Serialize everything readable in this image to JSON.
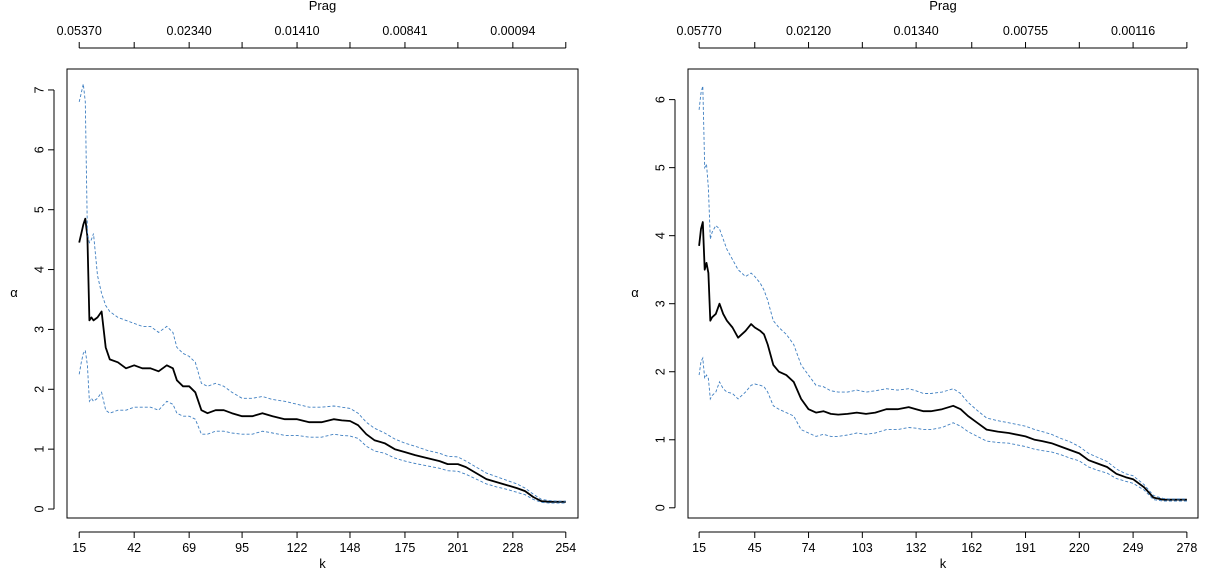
{
  "chart_data": [
    {
      "type": "line",
      "title": "",
      "top_axis": {
        "label": "Prag",
        "ticks": [
          15,
          69,
          122,
          175,
          228
        ],
        "tick_labels": [
          "0.05370",
          "0.02340",
          "0.01410",
          "0.00841",
          "0.00094"
        ]
      },
      "xlabel": "k",
      "ylabel": "α",
      "xlim": [
        9,
        260
      ],
      "ylim": [
        -0.15,
        7.35
      ],
      "x_ticks": [
        15,
        42,
        69,
        95,
        122,
        148,
        175,
        201,
        228,
        254
      ],
      "y_ticks": [
        0,
        1,
        2,
        3,
        4,
        5,
        6,
        7
      ],
      "series": [
        {
          "style": "estimate",
          "color": "#000000",
          "x": [
            15,
            16,
            17,
            18,
            19,
            20,
            21,
            22,
            24,
            26,
            28,
            30,
            34,
            38,
            42,
            46,
            50,
            54,
            58,
            61,
            63,
            66,
            69,
            72,
            75,
            78,
            82,
            86,
            90,
            95,
            100,
            105,
            110,
            116,
            122,
            128,
            134,
            140,
            144,
            148,
            152,
            156,
            160,
            165,
            170,
            175,
            180,
            186,
            192,
            196,
            201,
            205,
            210,
            215,
            220,
            225,
            230,
            234,
            238,
            242,
            246,
            250,
            254
          ],
          "y": [
            4.45,
            4.6,
            4.75,
            4.85,
            4.55,
            3.15,
            3.2,
            3.15,
            3.2,
            3.3,
            2.7,
            2.5,
            2.45,
            2.35,
            2.4,
            2.35,
            2.35,
            2.3,
            2.4,
            2.35,
            2.15,
            2.05,
            2.05,
            1.95,
            1.65,
            1.6,
            1.65,
            1.65,
            1.6,
            1.55,
            1.55,
            1.6,
            1.55,
            1.5,
            1.5,
            1.45,
            1.45,
            1.5,
            1.48,
            1.47,
            1.4,
            1.25,
            1.15,
            1.1,
            1.0,
            0.95,
            0.9,
            0.85,
            0.8,
            0.75,
            0.75,
            0.7,
            0.6,
            0.5,
            0.45,
            0.4,
            0.35,
            0.3,
            0.2,
            0.13,
            0.12,
            0.12,
            0.12
          ]
        },
        {
          "style": "upper-ci",
          "color": "#3f7fc1",
          "x": [
            15,
            16,
            17,
            18,
            19,
            20,
            21,
            22,
            24,
            26,
            28,
            30,
            34,
            38,
            42,
            46,
            50,
            54,
            58,
            61,
            63,
            66,
            69,
            72,
            75,
            78,
            82,
            86,
            90,
            95,
            100,
            105,
            110,
            116,
            122,
            128,
            134,
            140,
            144,
            148,
            152,
            156,
            160,
            165,
            170,
            175,
            180,
            186,
            192,
            196,
            201,
            205,
            210,
            215,
            220,
            225,
            230,
            234,
            238,
            242,
            246,
            250,
            254
          ],
          "y": [
            6.8,
            6.95,
            7.1,
            6.8,
            4.6,
            4.45,
            4.5,
            4.6,
            3.9,
            3.6,
            3.4,
            3.3,
            3.2,
            3.15,
            3.1,
            3.05,
            3.05,
            2.95,
            3.05,
            2.95,
            2.7,
            2.6,
            2.55,
            2.45,
            2.1,
            2.05,
            2.1,
            2.05,
            1.95,
            1.85,
            1.85,
            1.88,
            1.83,
            1.8,
            1.75,
            1.7,
            1.7,
            1.72,
            1.7,
            1.68,
            1.6,
            1.45,
            1.35,
            1.27,
            1.17,
            1.1,
            1.05,
            0.98,
            0.93,
            0.88,
            0.87,
            0.8,
            0.7,
            0.6,
            0.54,
            0.48,
            0.42,
            0.35,
            0.25,
            0.16,
            0.14,
            0.13,
            0.13
          ]
        },
        {
          "style": "lower-ci",
          "color": "#3f7fc1",
          "x": [
            15,
            16,
            17,
            18,
            19,
            20,
            21,
            22,
            24,
            26,
            28,
            30,
            34,
            38,
            42,
            46,
            50,
            54,
            58,
            61,
            63,
            66,
            69,
            72,
            75,
            78,
            82,
            86,
            90,
            95,
            100,
            105,
            110,
            116,
            122,
            128,
            134,
            140,
            144,
            148,
            152,
            156,
            160,
            165,
            170,
            175,
            180,
            186,
            192,
            196,
            201,
            205,
            210,
            215,
            220,
            225,
            230,
            234,
            238,
            242,
            246,
            250,
            254
          ],
          "y": [
            2.25,
            2.45,
            2.6,
            2.65,
            2.4,
            1.8,
            1.85,
            1.8,
            1.85,
            1.95,
            1.65,
            1.6,
            1.65,
            1.65,
            1.7,
            1.7,
            1.7,
            1.65,
            1.8,
            1.75,
            1.6,
            1.55,
            1.55,
            1.5,
            1.25,
            1.25,
            1.3,
            1.3,
            1.27,
            1.25,
            1.25,
            1.3,
            1.27,
            1.23,
            1.23,
            1.2,
            1.2,
            1.25,
            1.23,
            1.22,
            1.18,
            1.05,
            0.97,
            0.93,
            0.85,
            0.8,
            0.76,
            0.72,
            0.68,
            0.64,
            0.63,
            0.58,
            0.5,
            0.42,
            0.37,
            0.33,
            0.28,
            0.24,
            0.16,
            0.11,
            0.1,
            0.1,
            0.1
          ]
        }
      ]
    },
    {
      "type": "line",
      "title": "",
      "top_axis": {
        "label": "Prag",
        "ticks": [
          15,
          74,
          132,
          191,
          249
        ],
        "tick_labels": [
          "0.05770",
          "0.02120",
          "0.01340",
          "0.00755",
          "0.00116"
        ]
      },
      "xlabel": "k",
      "ylabel": "α",
      "xlim": [
        9,
        284
      ],
      "ylim": [
        -0.15,
        6.45
      ],
      "x_ticks": [
        15,
        45,
        74,
        103,
        132,
        162,
        191,
        220,
        249,
        278
      ],
      "y_ticks": [
        0,
        1,
        2,
        3,
        4,
        5,
        6
      ],
      "series": [
        {
          "style": "estimate",
          "color": "#000000",
          "x": [
            15,
            16,
            17,
            18,
            19,
            20,
            21,
            22,
            24,
            26,
            28,
            30,
            33,
            36,
            40,
            43,
            45,
            48,
            50,
            52,
            55,
            58,
            62,
            66,
            70,
            74,
            78,
            82,
            86,
            90,
            95,
            100,
            105,
            110,
            116,
            122,
            128,
            132,
            136,
            140,
            146,
            152,
            156,
            160,
            165,
            170,
            176,
            182,
            191,
            196,
            200,
            205,
            210,
            215,
            220,
            225,
            230,
            235,
            240,
            245,
            249,
            255,
            260,
            265,
            268,
            272,
            278
          ],
          "y": [
            3.85,
            4.1,
            4.2,
            3.5,
            3.6,
            3.45,
            2.75,
            2.8,
            2.85,
            3.0,
            2.85,
            2.75,
            2.65,
            2.5,
            2.6,
            2.7,
            2.65,
            2.6,
            2.55,
            2.4,
            2.1,
            2.0,
            1.95,
            1.85,
            1.6,
            1.45,
            1.4,
            1.42,
            1.38,
            1.37,
            1.38,
            1.4,
            1.38,
            1.4,
            1.45,
            1.45,
            1.48,
            1.45,
            1.42,
            1.42,
            1.45,
            1.5,
            1.45,
            1.35,
            1.25,
            1.15,
            1.12,
            1.1,
            1.05,
            1.0,
            0.98,
            0.95,
            0.9,
            0.85,
            0.8,
            0.7,
            0.65,
            0.6,
            0.5,
            0.45,
            0.42,
            0.3,
            0.15,
            0.12,
            0.12,
            0.12,
            0.12
          ]
        },
        {
          "style": "upper-ci",
          "color": "#3f7fc1",
          "x": [
            15,
            16,
            17,
            18,
            19,
            20,
            21,
            22,
            24,
            26,
            28,
            30,
            33,
            36,
            40,
            43,
            45,
            48,
            50,
            52,
            55,
            58,
            62,
            66,
            70,
            74,
            78,
            82,
            86,
            90,
            95,
            100,
            105,
            110,
            116,
            122,
            128,
            132,
            136,
            140,
            146,
            152,
            156,
            160,
            165,
            170,
            176,
            182,
            191,
            196,
            200,
            205,
            210,
            215,
            220,
            225,
            230,
            235,
            240,
            245,
            249,
            255,
            260,
            265,
            268,
            272,
            278
          ],
          "y": [
            5.85,
            6.1,
            6.2,
            5.0,
            5.05,
            4.7,
            3.95,
            4.05,
            4.15,
            4.1,
            3.95,
            3.8,
            3.65,
            3.5,
            3.4,
            3.45,
            3.4,
            3.3,
            3.2,
            3.05,
            2.75,
            2.65,
            2.55,
            2.4,
            2.1,
            1.95,
            1.8,
            1.78,
            1.72,
            1.7,
            1.7,
            1.73,
            1.7,
            1.72,
            1.75,
            1.73,
            1.75,
            1.72,
            1.68,
            1.68,
            1.7,
            1.75,
            1.68,
            1.55,
            1.43,
            1.32,
            1.28,
            1.25,
            1.2,
            1.15,
            1.12,
            1.08,
            1.02,
            0.97,
            0.9,
            0.8,
            0.74,
            0.68,
            0.57,
            0.5,
            0.47,
            0.34,
            0.18,
            0.14,
            0.13,
            0.13,
            0.13
          ]
        },
        {
          "style": "lower-ci",
          "color": "#3f7fc1",
          "x": [
            15,
            16,
            17,
            18,
            19,
            20,
            21,
            22,
            24,
            26,
            28,
            30,
            33,
            36,
            40,
            43,
            45,
            48,
            50,
            52,
            55,
            58,
            62,
            66,
            70,
            74,
            78,
            82,
            86,
            90,
            95,
            100,
            105,
            110,
            116,
            122,
            128,
            132,
            136,
            140,
            146,
            152,
            156,
            160,
            165,
            170,
            176,
            182,
            191,
            196,
            200,
            205,
            210,
            215,
            220,
            225,
            230,
            235,
            240,
            245,
            249,
            255,
            260,
            265,
            268,
            272,
            278
          ],
          "y": [
            1.95,
            2.15,
            2.2,
            1.9,
            1.95,
            1.9,
            1.6,
            1.65,
            1.7,
            1.85,
            1.75,
            1.7,
            1.68,
            1.6,
            1.7,
            1.8,
            1.82,
            1.8,
            1.78,
            1.7,
            1.5,
            1.45,
            1.4,
            1.35,
            1.15,
            1.1,
            1.05,
            1.08,
            1.05,
            1.05,
            1.07,
            1.1,
            1.08,
            1.1,
            1.15,
            1.15,
            1.18,
            1.17,
            1.15,
            1.15,
            1.18,
            1.25,
            1.2,
            1.12,
            1.05,
            0.98,
            0.96,
            0.95,
            0.9,
            0.86,
            0.84,
            0.82,
            0.78,
            0.73,
            0.69,
            0.6,
            0.55,
            0.51,
            0.43,
            0.39,
            0.36,
            0.26,
            0.12,
            0.1,
            0.1,
            0.1,
            0.1
          ]
        }
      ]
    }
  ]
}
